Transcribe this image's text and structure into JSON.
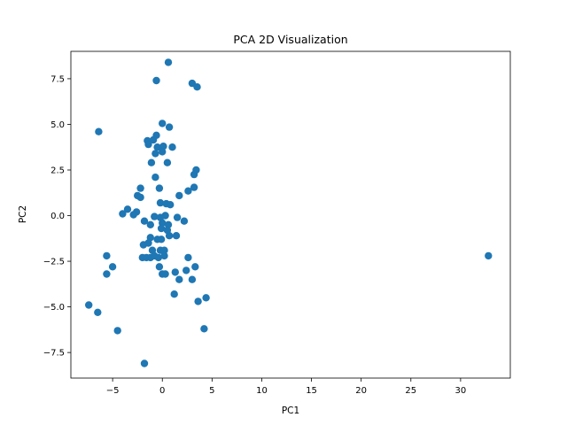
{
  "chart_data": {
    "type": "scatter",
    "title": "PCA 2D Visualization",
    "xlabel": "PC1",
    "ylabel": "PC2",
    "xlim": [
      -9.2,
      35.0
    ],
    "ylim": [
      -8.9,
      9.0
    ],
    "xticks": [
      -5,
      0,
      5,
      10,
      15,
      20,
      25,
      30
    ],
    "yticks": [
      -7.5,
      -5.0,
      -2.5,
      0.0,
      2.5,
      5.0,
      7.5
    ],
    "grid": false,
    "legend": "none",
    "marker_color": "#1f77b4",
    "points": [
      [
        0.6,
        8.4
      ],
      [
        -0.6,
        7.4
      ],
      [
        3.0,
        7.25
      ],
      [
        3.5,
        7.05
      ],
      [
        -6.4,
        4.6
      ],
      [
        0.0,
        5.05
      ],
      [
        0.7,
        4.85
      ],
      [
        -0.6,
        4.4
      ],
      [
        -1.5,
        4.1
      ],
      [
        -0.9,
        4.15
      ],
      [
        -1.4,
        3.9
      ],
      [
        -0.5,
        3.75
      ],
      [
        0.1,
        3.8
      ],
      [
        1.0,
        3.75
      ],
      [
        -0.7,
        3.4
      ],
      [
        0.0,
        3.5
      ],
      [
        -1.1,
        2.9
      ],
      [
        0.5,
        2.9
      ],
      [
        3.4,
        2.5
      ],
      [
        3.2,
        2.25
      ],
      [
        -0.7,
        2.1
      ],
      [
        -0.3,
        1.5
      ],
      [
        -2.2,
        1.5
      ],
      [
        3.2,
        1.55
      ],
      [
        2.6,
        1.35
      ],
      [
        1.7,
        1.1
      ],
      [
        -2.5,
        1.1
      ],
      [
        -2.2,
        1.0
      ],
      [
        -0.2,
        0.7
      ],
      [
        0.4,
        0.65
      ],
      [
        0.8,
        0.6
      ],
      [
        -3.5,
        0.35
      ],
      [
        -2.6,
        0.2
      ],
      [
        -4.0,
        0.1
      ],
      [
        -2.9,
        0.05
      ],
      [
        -0.8,
        -0.05
      ],
      [
        0.3,
        0.0
      ],
      [
        -0.2,
        -0.1
      ],
      [
        1.5,
        -0.1
      ],
      [
        2.2,
        -0.3
      ],
      [
        -1.8,
        -0.3
      ],
      [
        -1.2,
        -0.5
      ],
      [
        0.0,
        -0.4
      ],
      [
        0.6,
        -0.5
      ],
      [
        -0.1,
        -0.7
      ],
      [
        0.5,
        -0.8
      ],
      [
        -1.2,
        -1.2
      ],
      [
        0.7,
        -1.1
      ],
      [
        1.4,
        -1.1
      ],
      [
        -0.5,
        -1.3
      ],
      [
        -0.1,
        -1.3
      ],
      [
        -1.9,
        -1.6
      ],
      [
        -1.4,
        -1.5
      ],
      [
        -0.2,
        -1.9
      ],
      [
        0.2,
        -1.9
      ],
      [
        -1.0,
        -1.9
      ],
      [
        -5.6,
        -2.2
      ],
      [
        -2.0,
        -2.3
      ],
      [
        -1.6,
        -2.3
      ],
      [
        -1.2,
        -2.3
      ],
      [
        -0.8,
        -2.2
      ],
      [
        -0.4,
        -2.3
      ],
      [
        0.2,
        -2.2
      ],
      [
        2.6,
        -2.3
      ],
      [
        3.3,
        -2.8
      ],
      [
        -5.0,
        -2.8
      ],
      [
        -0.3,
        -2.8
      ],
      [
        32.8,
        -2.2
      ],
      [
        1.3,
        -3.1
      ],
      [
        2.4,
        -3.0
      ],
      [
        0.0,
        -3.2
      ],
      [
        0.3,
        -3.2
      ],
      [
        -5.6,
        -3.2
      ],
      [
        1.7,
        -3.5
      ],
      [
        3.0,
        -3.5
      ],
      [
        1.2,
        -4.3
      ],
      [
        4.4,
        -4.5
      ],
      [
        3.6,
        -4.7
      ],
      [
        -7.4,
        -4.9
      ],
      [
        -6.5,
        -5.3
      ],
      [
        -4.5,
        -6.3
      ],
      [
        4.2,
        -6.2
      ],
      [
        -1.8,
        -8.1
      ]
    ]
  }
}
